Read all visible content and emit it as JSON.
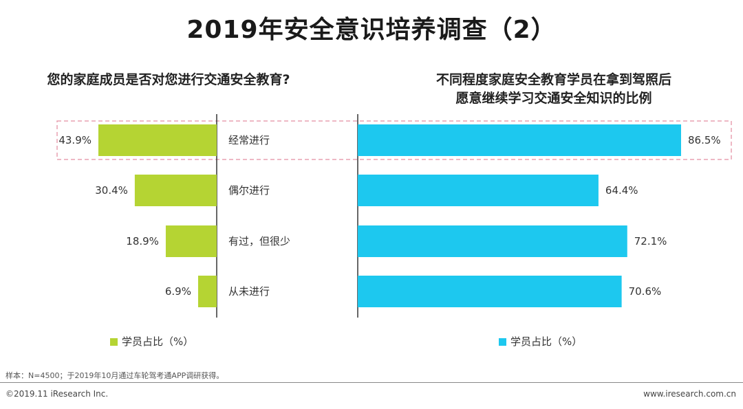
{
  "title": "2019年安全意识培养调查（2）",
  "colors": {
    "left_bar": "#b5d433",
    "right_bar": "#1dc8ef",
    "highlight": "#e8a0b0",
    "axis": "#333333"
  },
  "chart_data": [
    {
      "type": "bar",
      "orientation": "horizontal",
      "title": "您的家庭成员是否对您进行交通安全教育?",
      "categories": [
        "经常进行",
        "偶尔进行",
        "有过，但很少",
        "从未进行"
      ],
      "values": [
        43.9,
        30.4,
        18.9,
        6.9
      ],
      "value_labels": [
        "43.9%",
        "30.4%",
        "18.9%",
        "6.9%"
      ],
      "legend": "学员占比（%）",
      "highlighted_category": "经常进行"
    },
    {
      "type": "bar",
      "orientation": "horizontal",
      "title_lines": [
        "不同程度家庭安全教育学员在拿到驾照后",
        "愿意继续学习交通安全知识的比例"
      ],
      "categories": [
        "经常进行",
        "偶尔进行",
        "有过，但很少",
        "从未进行"
      ],
      "values": [
        86.5,
        64.4,
        72.1,
        70.6
      ],
      "value_labels": [
        "86.5%",
        "64.4%",
        "72.1%",
        "70.6%"
      ],
      "legend": "学员占比（%）"
    }
  ],
  "note": "样本：N=4500；于2019年10月通过车轮驾考通APP调研获得。",
  "footer": {
    "copyright": "©2019.11 iResearch Inc.",
    "website": "www.iresearch.com.cn"
  }
}
